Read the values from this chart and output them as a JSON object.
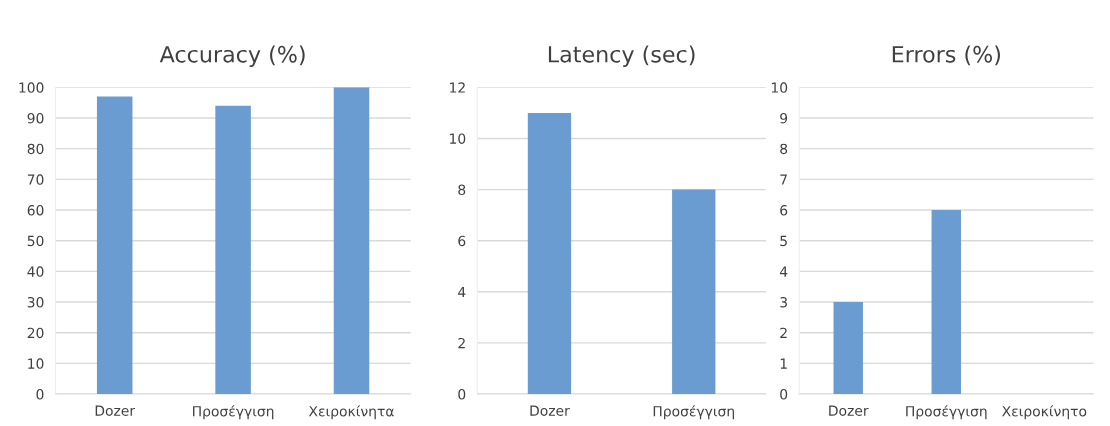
{
  "chart_data": [
    {
      "type": "bar",
      "title": "Accuracy (%)",
      "categories": [
        "Dozer",
        "Προσέγγιση",
        "Χειροκίνητα"
      ],
      "values": [
        97,
        94,
        100
      ],
      "color": "#6a9bd1",
      "ylim": [
        0,
        100
      ],
      "yticks": [
        0,
        10,
        20,
        30,
        40,
        50,
        60,
        70,
        80,
        90,
        100
      ],
      "grid": "y"
    },
    {
      "type": "bar",
      "title": "Latency (sec)",
      "categories": [
        "Dozer",
        "Προσέγγιση"
      ],
      "values": [
        11,
        8
      ],
      "color": "#6a9bd1",
      "ylim": [
        0,
        12
      ],
      "yticks": [
        0,
        2,
        4,
        6,
        8,
        10,
        12
      ],
      "grid": "y"
    },
    {
      "type": "bar",
      "title": "Errors (%)",
      "categories": [
        "Dozer",
        "Προσέγγιση",
        "Χειροκίνητο"
      ],
      "values": [
        3,
        6,
        0
      ],
      "color": "#6a9bd1",
      "ylim": [
        0,
        10
      ],
      "yticks": [
        0,
        1,
        2,
        3,
        4,
        5,
        6,
        7,
        8,
        9,
        10
      ],
      "grid": "y"
    }
  ]
}
